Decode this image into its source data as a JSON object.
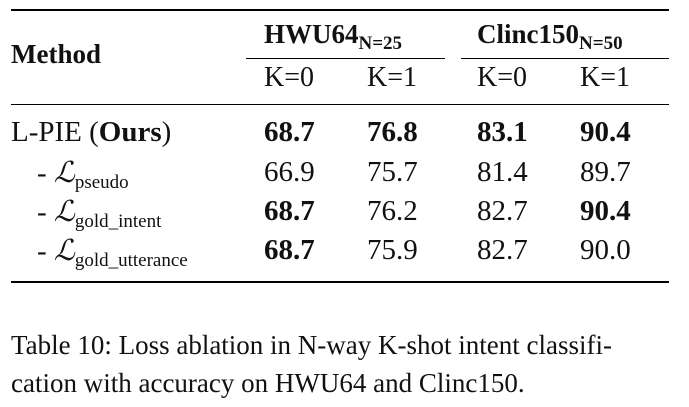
{
  "table": {
    "header": {
      "method": "Method",
      "groups": [
        {
          "name": "HWU64",
          "subscript": "N=25"
        },
        {
          "name": "Clinc150",
          "subscript": "N=50"
        }
      ],
      "k_labels": [
        "K=0",
        "K=1",
        "K=0",
        "K=1"
      ]
    },
    "rows": [
      {
        "label_prefix": "L-PIE (",
        "label_bold": "Ours",
        "label_suffix": ")",
        "values": [
          "68.7",
          "76.8",
          "83.1",
          "90.4"
        ],
        "bold": [
          true,
          true,
          true,
          true
        ]
      },
      {
        "label_prefix": "- ",
        "symbol": "ℒ",
        "subscript": "pseudo",
        "values": [
          "66.9",
          "75.7",
          "81.4",
          "89.7"
        ],
        "bold": [
          false,
          false,
          false,
          false
        ]
      },
      {
        "label_prefix": "- ",
        "symbol": "ℒ",
        "subscript": "gold_intent",
        "values": [
          "68.7",
          "76.2",
          "82.7",
          "90.4"
        ],
        "bold": [
          true,
          false,
          false,
          true
        ]
      },
      {
        "label_prefix": "- ",
        "symbol": "ℒ",
        "subscript": "gold_utterance",
        "values": [
          "68.7",
          "75.9",
          "82.7",
          "90.0"
        ],
        "bold": [
          true,
          false,
          false,
          false
        ]
      }
    ]
  },
  "caption": {
    "line1": "Table 10: Loss ablation in N-way K-shot intent classifi-",
    "line2": "cation with accuracy on HWU64 and Clinc150."
  }
}
